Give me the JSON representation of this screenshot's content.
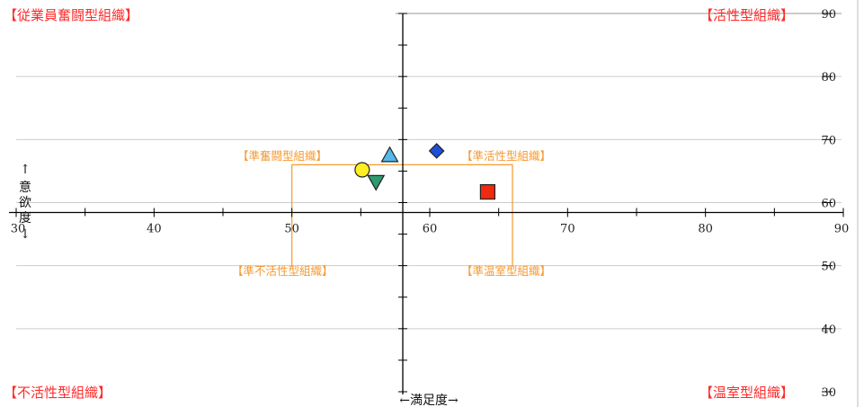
{
  "chart_data": {
    "type": "scatter",
    "xlim": [
      30,
      90
    ],
    "ylim": [
      30,
      90
    ],
    "x_ticks": [
      30,
      40,
      50,
      60,
      70,
      80,
      90
    ],
    "y_ticks": [
      30,
      40,
      50,
      60,
      70,
      80,
      90
    ],
    "x_tick_labels": [
      "30",
      "40",
      "50",
      "60",
      "70",
      "80",
      "90"
    ],
    "y_tick_labels": [
      "30",
      "40",
      "50",
      "60",
      "70",
      "80",
      "90"
    ],
    "x_axis_crosses_y": 59,
    "y_axis_crosses_x": 60,
    "xlabel": "←満足度→",
    "ylabel_arrow_up": "↑",
    "ylabel_chars": [
      "意",
      "欲",
      "度"
    ],
    "ylabel_arrow_down": "↓",
    "grid": "horizontal",
    "quadrant_labels": {
      "top_left": "【従業員奮闘型組織】",
      "top_right": "【活性型組織】",
      "bottom_left": "【不活性型組織】",
      "bottom_right": "【温室型組織】"
    },
    "inner_box": {
      "x": [
        50,
        66
      ],
      "y_top": 66
    },
    "inner_labels": {
      "top_left": "【準奮闘型組織】",
      "top_right": "【準活性型組織】",
      "bottom_left": "【準不活性型組織】",
      "bottom_right": "【準温室型組織】"
    },
    "points": [
      {
        "x": 55.1,
        "y": 65.2,
        "shape": "circle",
        "color": "#ffee22"
      },
      {
        "x": 57.1,
        "y": 67.5,
        "shape": "triangle-up",
        "color": "#55b8e8"
      },
      {
        "x": 56.1,
        "y": 63.3,
        "shape": "triangle-down",
        "color": "#2e9a70"
      },
      {
        "x": 60.5,
        "y": 68.2,
        "shape": "diamond",
        "color": "#1f4fd8"
      },
      {
        "x": 64.2,
        "y": 61.7,
        "shape": "square",
        "color": "#ee2a10"
      }
    ],
    "colors": {
      "quadrant_text": "#ff2a2a",
      "inner": "#f59a30",
      "axis": "#000000",
      "grid": "#cccccc"
    }
  }
}
